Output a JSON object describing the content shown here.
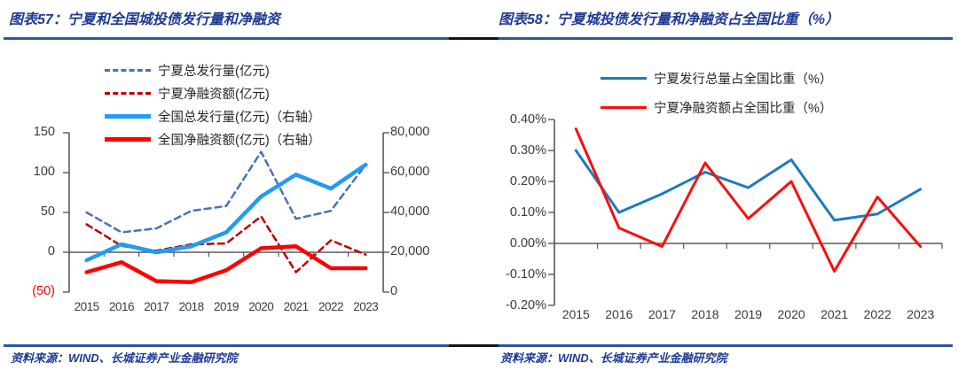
{
  "panels": [
    {
      "figure_title": "图表57：宁夏和全国城投债发行量和净融资",
      "source": "资料来源：WIND、长城证券产业金融研究院"
    },
    {
      "figure_title": "图表58：宁夏城投债发行量和净融资占全国比重（%）",
      "source": "资料来源：WIND、长城证券产业金融研究院"
    }
  ],
  "colors": {
    "title_blue": "#1e3a96",
    "rule_blue": "#2b55a5",
    "rule_black": "#141414",
    "axis_gray": "#595959",
    "negative_tick_red": "#fe0000"
  },
  "chart_data": [
    {
      "type": "line",
      "title": "宁夏和全国城投债发行量和净融资",
      "categories": [
        "2015",
        "2016",
        "2017",
        "2018",
        "2019",
        "2020",
        "2021",
        "2022",
        "2023"
      ],
      "grid": false,
      "legend_position": "top-left",
      "left_axis": {
        "ticks": [
          "150",
          "100",
          "50",
          "0",
          "(50)"
        ],
        "range": [
          -50,
          150
        ]
      },
      "right_axis": {
        "ticks": [
          "80,000",
          "60,000",
          "40,000",
          "20,000",
          "0"
        ],
        "range": [
          0,
          80000
        ]
      },
      "series": [
        {
          "name": "宁夏总发行量(亿元)",
          "axis": "left",
          "color": "#4472c4",
          "style": "dashed",
          "width": 2.5,
          "values": [
            50,
            25,
            30,
            52,
            58,
            126,
            42,
            52,
            110
          ]
        },
        {
          "name": "宁夏净融资额(亿元)",
          "axis": "left",
          "color": "#c00000",
          "style": "dashed",
          "width": 2.5,
          "values": [
            35,
            8,
            2,
            10,
            11,
            45,
            -25,
            15,
            -3
          ]
        },
        {
          "name": "全国总发行量(亿元)（右轴）",
          "axis": "right",
          "color": "#229bf2",
          "style": "solid",
          "width": 4.5,
          "values": [
            16000,
            24000,
            20000,
            23000,
            30000,
            48000,
            59000,
            52000,
            64000
          ]
        },
        {
          "name": "全国净融资额(亿元)（右轴）",
          "axis": "right",
          "color": "#fe0000",
          "style": "solid",
          "width": 4.5,
          "values": [
            10000,
            15000,
            5500,
            5000,
            11000,
            22000,
            23000,
            12000,
            12000
          ]
        }
      ]
    },
    {
      "type": "line",
      "title": "宁夏城投债发行量和净融资占全国比重（%）",
      "categories": [
        "2015",
        "2016",
        "2017",
        "2018",
        "2019",
        "2020",
        "2021",
        "2022",
        "2023"
      ],
      "grid": false,
      "legend_position": "top-center",
      "y_axis": {
        "ticks": [
          "0.40%",
          "0.30%",
          "0.20%",
          "0.10%",
          "0.00%",
          "-0.10%",
          "-0.20%"
        ],
        "range": [
          -0.2,
          0.4
        ],
        "unit": "%"
      },
      "series": [
        {
          "name": "宁夏发行总量占全国比重（%）",
          "color": "#1b7bbf",
          "style": "solid",
          "width": 3,
          "values": [
            0.3,
            0.1,
            0.16,
            0.23,
            0.18,
            0.27,
            0.075,
            0.095,
            0.175
          ]
        },
        {
          "name": "宁夏净融资额占全国比重（%）",
          "color": "#fb0d0d",
          "style": "solid",
          "width": 3,
          "values": [
            0.37,
            0.05,
            -0.01,
            0.26,
            0.08,
            0.2,
            -0.09,
            0.15,
            -0.01
          ]
        }
      ]
    }
  ]
}
